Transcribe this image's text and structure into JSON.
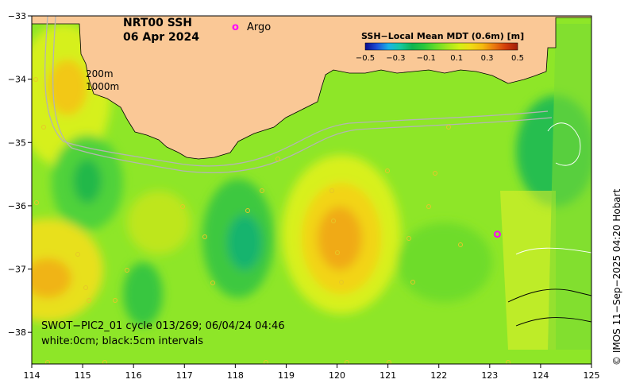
{
  "title": {
    "product": "NRT00 SSH",
    "date": "06 Apr 2024"
  },
  "legend": {
    "argo_marker": "o",
    "argo_label": "Argo"
  },
  "isobaths": {
    "label_200": "200m",
    "label_1000": "1000m"
  },
  "colorbar": {
    "title": "SSH−Local Mean MDT (0.6m) [m]",
    "ticks": [
      "−0.5",
      "−0.3",
      "−0.1",
      "0.1",
      "0.3",
      "0.5"
    ],
    "colors": [
      "#0a0a8c",
      "#1e4fd8",
      "#19b3e6",
      "#14c8a0",
      "#0fb450",
      "#28c83c",
      "#64dc28",
      "#a0e61e",
      "#d2f014",
      "#f0dc14",
      "#f5b90f",
      "#eb780f",
      "#d23c0a",
      "#a01e0a"
    ]
  },
  "swot_note": {
    "line1": "SWOT−PIC2_01 cycle 013/269; 06/04/24 04:46",
    "line2": "white:0cm; black:5cm intervals"
  },
  "credit": "© IMOS 11−Sep−2025 04:20 Hobart",
  "axes": {
    "x_ticks": [
      "114",
      "115",
      "116",
      "117",
      "118",
      "119",
      "120",
      "121",
      "122",
      "123",
      "124",
      "125"
    ],
    "y_ticks": [
      "−33",
      "−34",
      "−35",
      "−36",
      "−37",
      "−38"
    ]
  },
  "map_data": {
    "lon_range": [
      114,
      125
    ],
    "lat_range": [
      -38.5,
      -33
    ],
    "argo_float": {
      "lon": 123.15,
      "lat": -36.45
    },
    "colors": {
      "land": "#fac896",
      "background_field": "#8ee628",
      "argo": "#ff00ff"
    }
  }
}
